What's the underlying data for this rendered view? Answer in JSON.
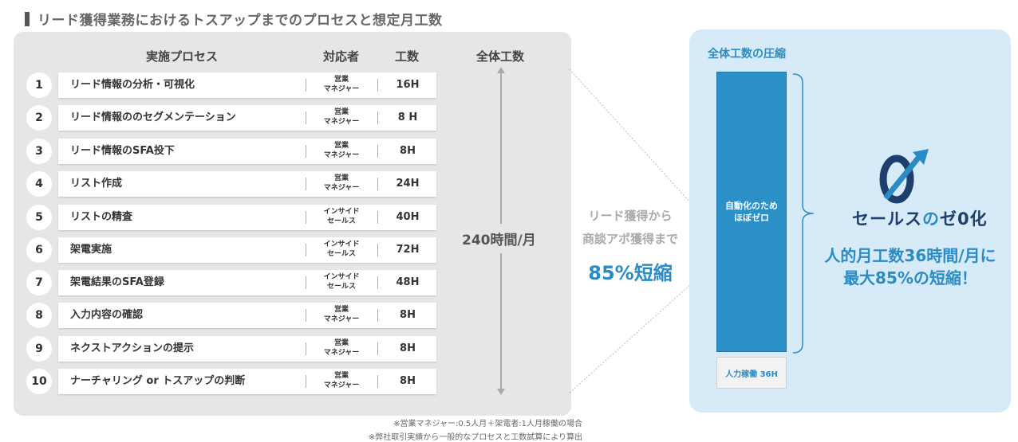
{
  "title": "リード獲得業務におけるトスアップまでのプロセスと想定月工数",
  "table": {
    "headers": {
      "process": "実施プロセス",
      "owner": "対応者",
      "hours": "工数",
      "total": "全体工数"
    },
    "rows": [
      {
        "num": "1",
        "name": "リード情報の分析・可視化",
        "owner_l1": "営業",
        "owner_l2": "マネジャー",
        "hours": "16H"
      },
      {
        "num": "2",
        "name": "リード情報ののセグメンテーション",
        "owner_l1": "営業",
        "owner_l2": "マネジャー",
        "hours": "8 H"
      },
      {
        "num": "3",
        "name": "リード情報のSFA投下",
        "owner_l1": "営業",
        "owner_l2": "マネジャー",
        "hours": "8H"
      },
      {
        "num": "4",
        "name": "リスト作成",
        "owner_l1": "営業",
        "owner_l2": "マネジャー",
        "hours": "24H"
      },
      {
        "num": "5",
        "name": "リストの精査",
        "owner_l1": "インサイド",
        "owner_l2": "セールス",
        "hours": "40H"
      },
      {
        "num": "6",
        "name": "架電実施",
        "owner_l1": "インサイド",
        "owner_l2": "セールス",
        "hours": "72H"
      },
      {
        "num": "7",
        "name": "架電結果のSFA登録",
        "owner_l1": "インサイド",
        "owner_l2": "セールス",
        "hours": "48H"
      },
      {
        "num": "8",
        "name": "入力内容の確認",
        "owner_l1": "営業",
        "owner_l2": "マネジャー",
        "hours": "8H"
      },
      {
        "num": "9",
        "name": "ネクストアクションの提示",
        "owner_l1": "営業",
        "owner_l2": "マネジャー",
        "hours": "8H"
      },
      {
        "num": "10",
        "name": "ナーチャリング or トスアップの判断",
        "owner_l1": "営業",
        "owner_l2": "マネジャー",
        "hours": "8H"
      }
    ],
    "total_label": "240時間/月"
  },
  "middle": {
    "line1": "リード獲得から",
    "line2": "商談アポ獲得まで",
    "pct": "85%短縮"
  },
  "right": {
    "title": "全体工数の圧縮",
    "auto_l1": "自動化のため",
    "auto_l2": "ほぼゼロ",
    "manual": "人力稼働 36H",
    "brand_pre": "セールス",
    "brand_no": "の",
    "brand_post": "ゼ0化",
    "msg_l1": "人的月工数36時間/月に",
    "msg_l2": "最大85%の短縮！"
  },
  "footnotes": [
    "※営業マネジャー:0.5人月＋架電者:1人月稼働の場合",
    "※弊社取引実績から一般的なプロセスと工数試算により算出"
  ],
  "colors": {
    "accent": "#2b8cc4",
    "panel_gray": "#e6e6e6",
    "panel_blue": "#d6ebf7",
    "brand_navy": "#1d3f6e"
  }
}
